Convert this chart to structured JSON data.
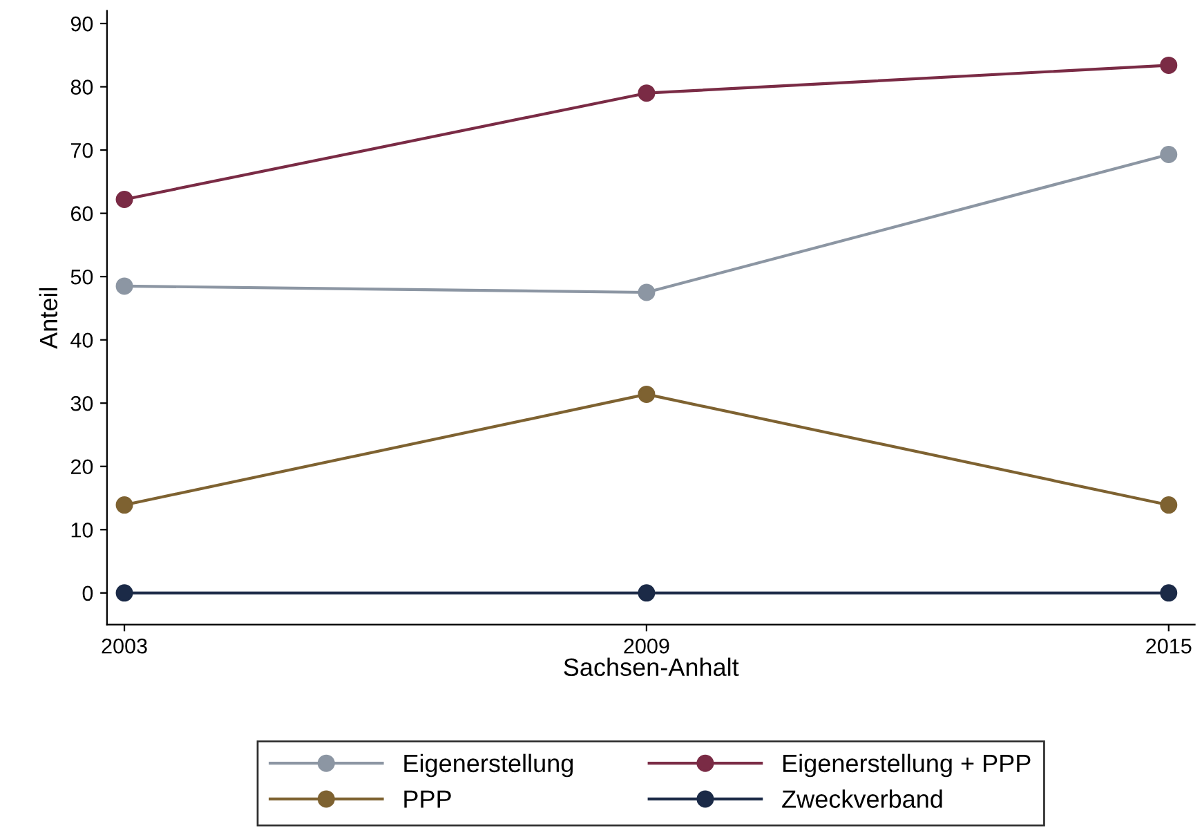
{
  "chart_data": {
    "type": "line",
    "xlabel": "Sachsen-Anhalt",
    "ylabel": "Anteil",
    "x": [
      2003,
      2009,
      2015
    ],
    "series": [
      {
        "name": "Eigenerstellung",
        "color": "#8c96a3",
        "values": [
          48.5,
          47.5,
          69.3
        ]
      },
      {
        "name": "Eigenerstellung + PPP",
        "color": "#7a2b45",
        "values": [
          62.2,
          79.0,
          83.4
        ]
      },
      {
        "name": "PPP",
        "color": "#7e6231",
        "values": [
          13.9,
          31.4,
          13.9
        ]
      },
      {
        "name": "Zweckverband",
        "color": "#1b2a47",
        "values": [
          0,
          0,
          0
        ]
      }
    ],
    "xlim": [
      2002.8,
      2015.3
    ],
    "xticks": [
      2003,
      2009,
      2015
    ],
    "ylim": [
      -5,
      92
    ],
    "yticks": [
      0,
      10,
      20,
      30,
      40,
      50,
      60,
      70,
      80,
      90
    ],
    "marker": "circle",
    "line_style": "solid",
    "grid": false,
    "legend": "bottom"
  }
}
